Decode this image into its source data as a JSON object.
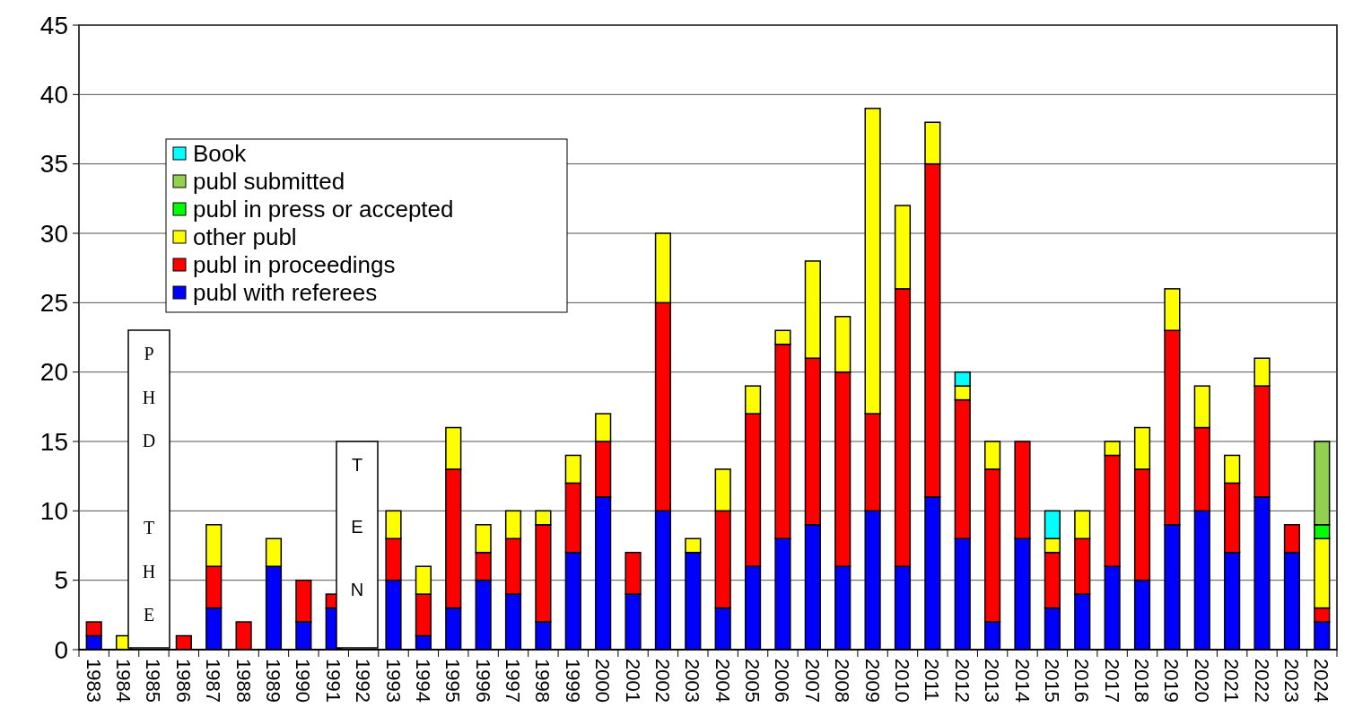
{
  "chart_data": {
    "type": "bar",
    "stacked": true,
    "categories": [
      "1983",
      "1984",
      "1985",
      "1986",
      "1987",
      "1988",
      "1989",
      "1990",
      "1991",
      "1992",
      "1993",
      "1994",
      "1995",
      "1996",
      "1997",
      "1998",
      "1999",
      "2000",
      "2001",
      "2002",
      "2003",
      "2004",
      "2005",
      "2006",
      "2007",
      "2008",
      "2009",
      "2010",
      "2011",
      "2012",
      "2013",
      "2014",
      "2015",
      "2016",
      "2017",
      "2018",
      "2019",
      "2020",
      "2021",
      "2022",
      "2023",
      "2024"
    ],
    "series": [
      {
        "name": "publ with referees",
        "color": "#0000ff",
        "values": [
          1,
          0,
          0,
          0,
          3,
          0,
          6,
          2,
          3,
          0,
          5,
          1,
          3,
          5,
          4,
          2,
          7,
          11,
          4,
          10,
          7,
          3,
          6,
          8,
          9,
          6,
          10,
          6,
          11,
          8,
          2,
          8,
          3,
          4,
          6,
          5,
          9,
          10,
          7,
          11,
          7,
          2
        ]
      },
      {
        "name": "publ in proceedings",
        "color": "#ff0000",
        "values": [
          1,
          0,
          0,
          1,
          3,
          2,
          0,
          3,
          1,
          0,
          3,
          3,
          10,
          2,
          4,
          7,
          5,
          4,
          3,
          15,
          0,
          7,
          11,
          14,
          12,
          14,
          7,
          20,
          24,
          10,
          11,
          7,
          4,
          4,
          8,
          8,
          14,
          6,
          5,
          8,
          2,
          1
        ]
      },
      {
        "name": "other publ",
        "color": "#ffff00",
        "values": [
          0,
          1,
          0,
          0,
          3,
          0,
          2,
          0,
          0,
          0,
          2,
          2,
          3,
          2,
          2,
          1,
          2,
          2,
          0,
          5,
          1,
          3,
          2,
          1,
          7,
          4,
          22,
          6,
          3,
          1,
          2,
          0,
          1,
          2,
          1,
          3,
          3,
          3,
          2,
          2,
          0,
          5
        ]
      },
      {
        "name": "publ in press or accepted",
        "color": "#00ff00",
        "values": [
          0,
          0,
          0,
          0,
          0,
          0,
          0,
          0,
          0,
          0,
          0,
          0,
          0,
          0,
          0,
          0,
          0,
          0,
          0,
          0,
          0,
          0,
          0,
          0,
          0,
          0,
          0,
          0,
          0,
          0,
          0,
          0,
          0,
          0,
          0,
          0,
          0,
          0,
          0,
          0,
          0,
          1
        ]
      },
      {
        "name": "publ submitted",
        "color": "#92d050",
        "values": [
          0,
          0,
          0,
          0,
          0,
          0,
          0,
          0,
          0,
          0,
          0,
          0,
          0,
          0,
          0,
          0,
          0,
          0,
          0,
          0,
          0,
          0,
          0,
          0,
          0,
          0,
          0,
          0,
          0,
          0,
          0,
          0,
          0,
          0,
          0,
          0,
          0,
          0,
          0,
          0,
          0,
          6
        ]
      },
      {
        "name": "Book",
        "color": "#00ffff",
        "values": [
          0,
          0,
          0,
          0,
          0,
          0,
          0,
          0,
          0,
          0,
          0,
          0,
          0,
          0,
          0,
          0,
          0,
          0,
          0,
          0,
          0,
          0,
          0,
          0,
          0,
          0,
          0,
          0,
          0,
          1,
          0,
          0,
          2,
          0,
          0,
          0,
          0,
          0,
          0,
          0,
          0,
          0
        ]
      }
    ],
    "ylim": [
      0,
      45
    ],
    "yticks": [
      0,
      5,
      10,
      15,
      20,
      25,
      30,
      35,
      40,
      45
    ],
    "grid": "y",
    "legend": "top left",
    "annotations": [
      "PHD THE",
      "TEN"
    ]
  }
}
